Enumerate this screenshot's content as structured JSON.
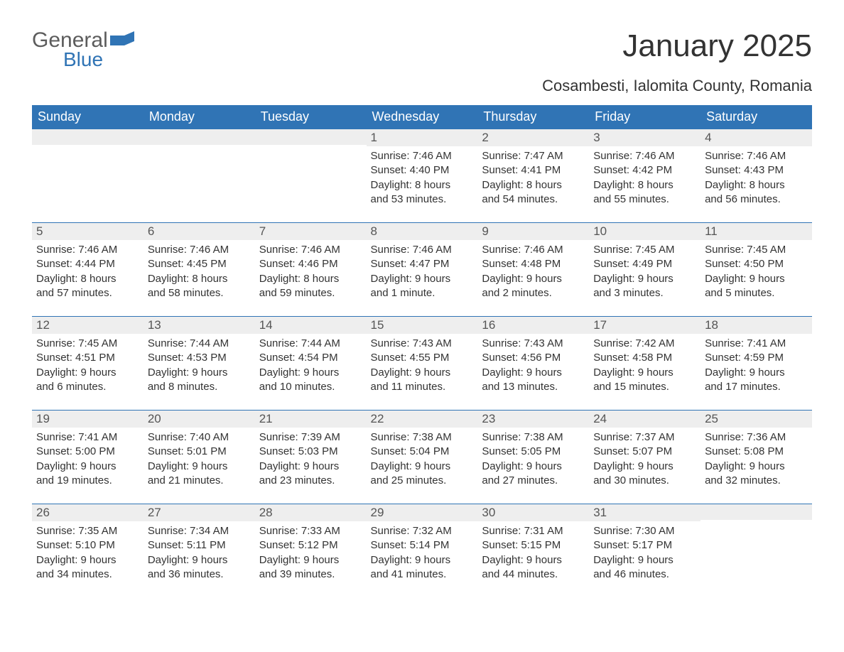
{
  "brand": {
    "word1": "General",
    "word2": "Blue"
  },
  "title": "January 2025",
  "location": "Cosambesti, Ialomita County, Romania",
  "colors": {
    "header_bg": "#3074b5",
    "header_text": "#ffffff",
    "daynum_bg": "#eeeeee",
    "text": "#333333",
    "brand_blue": "#3074b5",
    "brand_gray": "#5c5c5c"
  },
  "days_of_week": [
    "Sunday",
    "Monday",
    "Tuesday",
    "Wednesday",
    "Thursday",
    "Friday",
    "Saturday"
  ],
  "weeks": [
    [
      {
        "empty": true
      },
      {
        "empty": true
      },
      {
        "empty": true
      },
      {
        "num": "1",
        "sunrise": "Sunrise: 7:46 AM",
        "sunset": "Sunset: 4:40 PM",
        "dl1": "Daylight: 8 hours",
        "dl2": "and 53 minutes."
      },
      {
        "num": "2",
        "sunrise": "Sunrise: 7:47 AM",
        "sunset": "Sunset: 4:41 PM",
        "dl1": "Daylight: 8 hours",
        "dl2": "and 54 minutes."
      },
      {
        "num": "3",
        "sunrise": "Sunrise: 7:46 AM",
        "sunset": "Sunset: 4:42 PM",
        "dl1": "Daylight: 8 hours",
        "dl2": "and 55 minutes."
      },
      {
        "num": "4",
        "sunrise": "Sunrise: 7:46 AM",
        "sunset": "Sunset: 4:43 PM",
        "dl1": "Daylight: 8 hours",
        "dl2": "and 56 minutes."
      }
    ],
    [
      {
        "num": "5",
        "sunrise": "Sunrise: 7:46 AM",
        "sunset": "Sunset: 4:44 PM",
        "dl1": "Daylight: 8 hours",
        "dl2": "and 57 minutes."
      },
      {
        "num": "6",
        "sunrise": "Sunrise: 7:46 AM",
        "sunset": "Sunset: 4:45 PM",
        "dl1": "Daylight: 8 hours",
        "dl2": "and 58 minutes."
      },
      {
        "num": "7",
        "sunrise": "Sunrise: 7:46 AM",
        "sunset": "Sunset: 4:46 PM",
        "dl1": "Daylight: 8 hours",
        "dl2": "and 59 minutes."
      },
      {
        "num": "8",
        "sunrise": "Sunrise: 7:46 AM",
        "sunset": "Sunset: 4:47 PM",
        "dl1": "Daylight: 9 hours",
        "dl2": "and 1 minute."
      },
      {
        "num": "9",
        "sunrise": "Sunrise: 7:46 AM",
        "sunset": "Sunset: 4:48 PM",
        "dl1": "Daylight: 9 hours",
        "dl2": "and 2 minutes."
      },
      {
        "num": "10",
        "sunrise": "Sunrise: 7:45 AM",
        "sunset": "Sunset: 4:49 PM",
        "dl1": "Daylight: 9 hours",
        "dl2": "and 3 minutes."
      },
      {
        "num": "11",
        "sunrise": "Sunrise: 7:45 AM",
        "sunset": "Sunset: 4:50 PM",
        "dl1": "Daylight: 9 hours",
        "dl2": "and 5 minutes."
      }
    ],
    [
      {
        "num": "12",
        "sunrise": "Sunrise: 7:45 AM",
        "sunset": "Sunset: 4:51 PM",
        "dl1": "Daylight: 9 hours",
        "dl2": "and 6 minutes."
      },
      {
        "num": "13",
        "sunrise": "Sunrise: 7:44 AM",
        "sunset": "Sunset: 4:53 PM",
        "dl1": "Daylight: 9 hours",
        "dl2": "and 8 minutes."
      },
      {
        "num": "14",
        "sunrise": "Sunrise: 7:44 AM",
        "sunset": "Sunset: 4:54 PM",
        "dl1": "Daylight: 9 hours",
        "dl2": "and 10 minutes."
      },
      {
        "num": "15",
        "sunrise": "Sunrise: 7:43 AM",
        "sunset": "Sunset: 4:55 PM",
        "dl1": "Daylight: 9 hours",
        "dl2": "and 11 minutes."
      },
      {
        "num": "16",
        "sunrise": "Sunrise: 7:43 AM",
        "sunset": "Sunset: 4:56 PM",
        "dl1": "Daylight: 9 hours",
        "dl2": "and 13 minutes."
      },
      {
        "num": "17",
        "sunrise": "Sunrise: 7:42 AM",
        "sunset": "Sunset: 4:58 PM",
        "dl1": "Daylight: 9 hours",
        "dl2": "and 15 minutes."
      },
      {
        "num": "18",
        "sunrise": "Sunrise: 7:41 AM",
        "sunset": "Sunset: 4:59 PM",
        "dl1": "Daylight: 9 hours",
        "dl2": "and 17 minutes."
      }
    ],
    [
      {
        "num": "19",
        "sunrise": "Sunrise: 7:41 AM",
        "sunset": "Sunset: 5:00 PM",
        "dl1": "Daylight: 9 hours",
        "dl2": "and 19 minutes."
      },
      {
        "num": "20",
        "sunrise": "Sunrise: 7:40 AM",
        "sunset": "Sunset: 5:01 PM",
        "dl1": "Daylight: 9 hours",
        "dl2": "and 21 minutes."
      },
      {
        "num": "21",
        "sunrise": "Sunrise: 7:39 AM",
        "sunset": "Sunset: 5:03 PM",
        "dl1": "Daylight: 9 hours",
        "dl2": "and 23 minutes."
      },
      {
        "num": "22",
        "sunrise": "Sunrise: 7:38 AM",
        "sunset": "Sunset: 5:04 PM",
        "dl1": "Daylight: 9 hours",
        "dl2": "and 25 minutes."
      },
      {
        "num": "23",
        "sunrise": "Sunrise: 7:38 AM",
        "sunset": "Sunset: 5:05 PM",
        "dl1": "Daylight: 9 hours",
        "dl2": "and 27 minutes."
      },
      {
        "num": "24",
        "sunrise": "Sunrise: 7:37 AM",
        "sunset": "Sunset: 5:07 PM",
        "dl1": "Daylight: 9 hours",
        "dl2": "and 30 minutes."
      },
      {
        "num": "25",
        "sunrise": "Sunrise: 7:36 AM",
        "sunset": "Sunset: 5:08 PM",
        "dl1": "Daylight: 9 hours",
        "dl2": "and 32 minutes."
      }
    ],
    [
      {
        "num": "26",
        "sunrise": "Sunrise: 7:35 AM",
        "sunset": "Sunset: 5:10 PM",
        "dl1": "Daylight: 9 hours",
        "dl2": "and 34 minutes."
      },
      {
        "num": "27",
        "sunrise": "Sunrise: 7:34 AM",
        "sunset": "Sunset: 5:11 PM",
        "dl1": "Daylight: 9 hours",
        "dl2": "and 36 minutes."
      },
      {
        "num": "28",
        "sunrise": "Sunrise: 7:33 AM",
        "sunset": "Sunset: 5:12 PM",
        "dl1": "Daylight: 9 hours",
        "dl2": "and 39 minutes."
      },
      {
        "num": "29",
        "sunrise": "Sunrise: 7:32 AM",
        "sunset": "Sunset: 5:14 PM",
        "dl1": "Daylight: 9 hours",
        "dl2": "and 41 minutes."
      },
      {
        "num": "30",
        "sunrise": "Sunrise: 7:31 AM",
        "sunset": "Sunset: 5:15 PM",
        "dl1": "Daylight: 9 hours",
        "dl2": "and 44 minutes."
      },
      {
        "num": "31",
        "sunrise": "Sunrise: 7:30 AM",
        "sunset": "Sunset: 5:17 PM",
        "dl1": "Daylight: 9 hours",
        "dl2": "and 46 minutes."
      },
      {
        "empty": true
      }
    ]
  ]
}
